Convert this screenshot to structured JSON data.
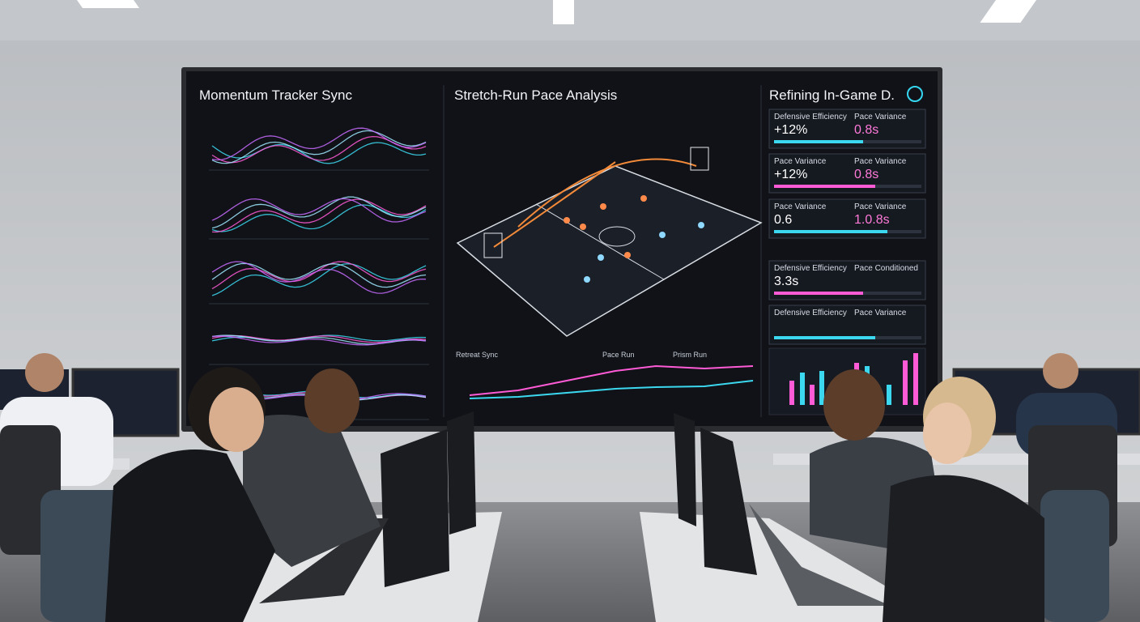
{
  "screen": {
    "panels": [
      {
        "title": "Momentum Tracker Sync"
      },
      {
        "title": "Stretch-Run Pace Analysis",
        "chart_labels": [
          "Retreat Sync",
          "Pace Run",
          "Prism Run"
        ]
      },
      {
        "title": "Refining In-Game D.",
        "cards": [
          {
            "left_label": "Defensive Efficiency",
            "left_value": "+12%",
            "right_label": "Pace Variance",
            "right_value": "0.8s"
          },
          {
            "left_label": "Pace Variance",
            "left_value": "+12%",
            "right_label": "Pace Variance",
            "right_value": "0.8s"
          },
          {
            "left_label": "Pace Variance",
            "left_value": "0.6",
            "right_label": "Pace Variance",
            "right_value": "1.0.8s"
          },
          {
            "left_label": "Defensive Efficiency",
            "left_value": "3.3s",
            "right_label": "Pace Conditioned"
          },
          {
            "left_label": "Defensive Efficiency",
            "right_label": "Pace Variance"
          }
        ]
      }
    ]
  }
}
